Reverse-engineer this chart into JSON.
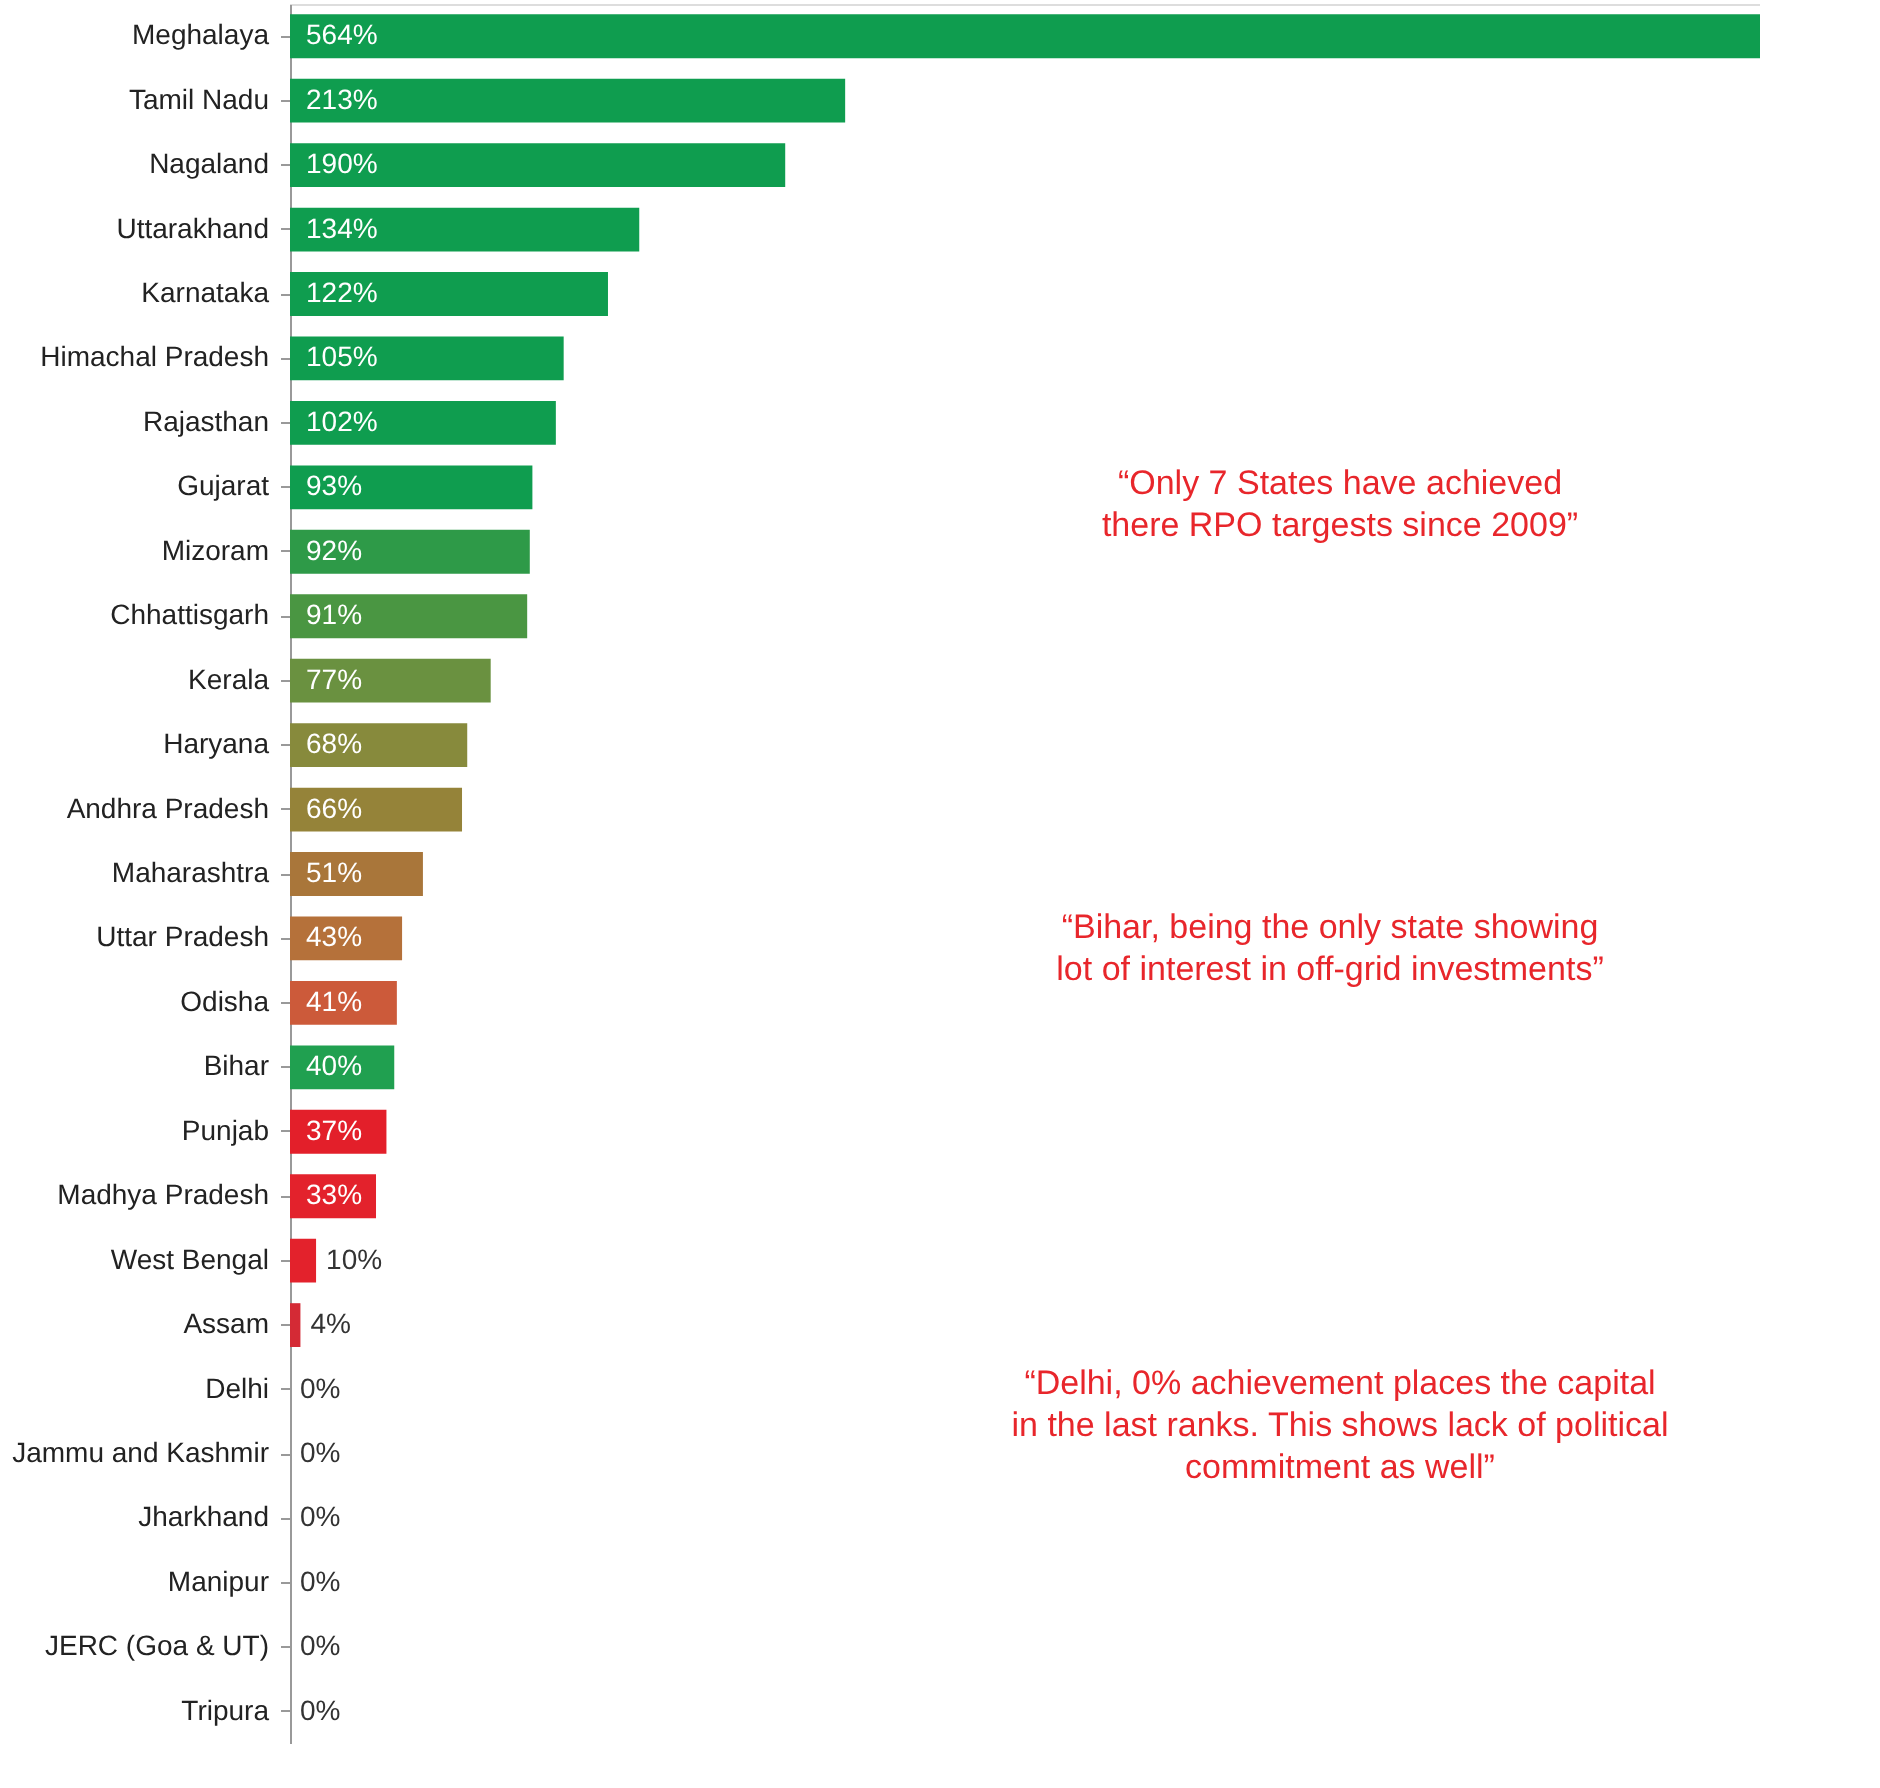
{
  "chart_data": {
    "type": "bar",
    "orientation": "horizontal",
    "grid": false,
    "tick_labels": "y",
    "categories": [
      "Meghalaya",
      "Tamil Nadu",
      "Nagaland",
      "Uttarakhand",
      "Karnataka",
      "Himachal Pradesh",
      "Rajasthan",
      "Gujarat",
      "Mizoram",
      "Chhattisgarh",
      "Kerala",
      "Haryana",
      "Andhra Pradesh",
      "Maharashtra",
      "Uttar Pradesh",
      "Odisha",
      "Bihar",
      "Punjab",
      "Madhya Pradesh",
      "West Bengal",
      "Assam",
      "Delhi",
      "Jammu and Kashmir",
      "Jharkhand",
      "Manipur",
      "JERC (Goa & UT)",
      "Tripura"
    ],
    "values": [
      564,
      213,
      190,
      134,
      122,
      105,
      102,
      93,
      92,
      91,
      77,
      68,
      66,
      51,
      43,
      41,
      40,
      37,
      33,
      10,
      4,
      0,
      0,
      0,
      0,
      0,
      0
    ],
    "value_labels": [
      "564%",
      "213%",
      "190%",
      "134%",
      "122%",
      "105%",
      "102%",
      "93%",
      "92%",
      "91%",
      "77%",
      "68%",
      "66%",
      "51%",
      "43%",
      "41%",
      "40%",
      "37%",
      "33%",
      "10%",
      "4%",
      "0%",
      "0%",
      "0%",
      "0%",
      "0%",
      "0%"
    ],
    "colors": [
      "#0f9d4f",
      "#0f9d4f",
      "#0f9d4f",
      "#0f9d4f",
      "#0f9d4f",
      "#0f9d4f",
      "#0f9d4f",
      "#0f9d4f",
      "#2e9a48",
      "#4a9642",
      "#6a9140",
      "#878a3c",
      "#958339",
      "#a9763a",
      "#b5713a",
      "#cc5a3a",
      "#20a050",
      "#e31f2a",
      "#e3222c",
      "#e3222c",
      "#d42a35",
      "#e3222c",
      "#e3222c",
      "#e3222c",
      "#e3222c",
      "#e3222c",
      "#e3222c"
    ],
    "annotations": [
      "“Only 7 States have achieved\nthere RPO targests since 2009”",
      "“Bihar, being the only state showing\nlot of interest in off-grid investments”",
      "“Delhi, 0% achievement places the capital\nin the last ranks. This shows lack of political\ncommitment as well”"
    ]
  }
}
